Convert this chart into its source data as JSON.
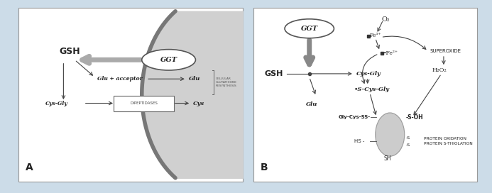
{
  "bg_color": "#ccdce8",
  "panel_bg": "#ffffff",
  "gray_region_color": "#d0d0d0",
  "gray_region_border": "#888888",
  "label_A": "A",
  "label_B": "B",
  "panel_A": {
    "ggt_label": "GGT",
    "gsh_label": "GSH",
    "glu_acceptor_label": "Glu + acceptor",
    "glu_label": "Glu",
    "cys_gly_label": "Cys-Gly",
    "dipeptidases_label": "DIPEPTIDASES",
    "cys_label": "Cys",
    "cellular_label": "CELLULAR\nGLUTATHIONE\nRESYNTHESIS"
  },
  "panel_B": {
    "ggt_label": "GGT",
    "gsh_label": "GSH",
    "o2_label": "O₂",
    "fe3_label": "Fe³⁺",
    "fe2_label": "•Fe²⁺",
    "superoxide_label": "SUPEROXIDE",
    "h2o2_label": "H₂O₂",
    "cys_gly_label": "Cys-Gly",
    "s_cys_gly_label": "•S-Cys-Gly",
    "glu_label": "Glu",
    "gly_cys_ss_label": "Gly-Cys-SS-",
    "s_oh_label": "-S-OH",
    "hs_label": "HS -",
    "sh_label": "SH",
    "protein_ox_label": "PROTEIN OXIDATION\nPROTEIN S-THIOLATION"
  }
}
